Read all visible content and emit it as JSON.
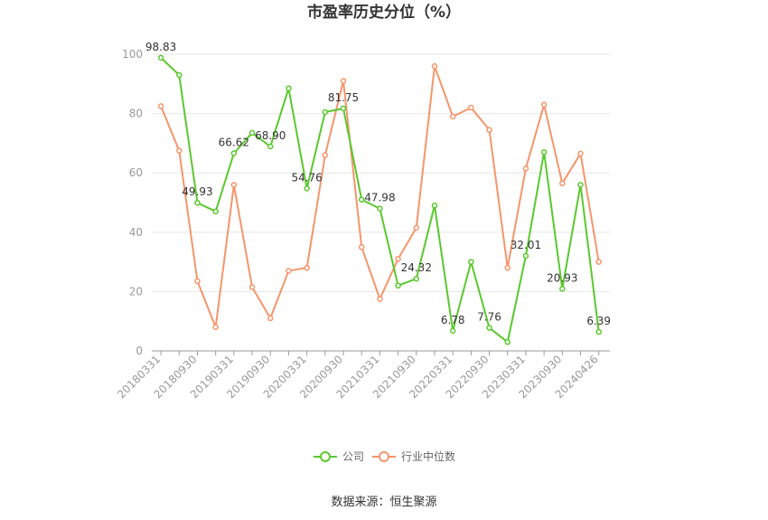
{
  "title": "市盈率历史分位（%）",
  "source": "数据来源：恒生聚源",
  "colors": {
    "company": "#5ac82d",
    "industry": "#f5956b",
    "grid": "#e6e6e6",
    "axis": "#999999"
  },
  "chart_data": {
    "type": "line",
    "title": "市盈率历史分位（%）",
    "xlabel": "",
    "ylabel": "",
    "ylim": [
      0,
      100
    ],
    "yticks": [
      0,
      20,
      40,
      60,
      80,
      100
    ],
    "grid": true,
    "legend_position": "bottom",
    "x": [
      "20180331",
      "20180630",
      "20180930",
      "20181231",
      "20190331",
      "20190630",
      "20190930",
      "20191231",
      "20200331",
      "20200630",
      "20200930",
      "20201231",
      "20210331",
      "20210630",
      "20210930",
      "20211231",
      "20220331",
      "20220630",
      "20220930",
      "20221231",
      "20230331",
      "20230630",
      "20230930",
      "20231231",
      "20240426"
    ],
    "x_tick_labels": [
      "20180331",
      "20180930",
      "20190331",
      "20190930",
      "20200331",
      "20200930",
      "20210331",
      "20210930",
      "20220331",
      "20220930",
      "20230331",
      "20230930",
      "20240426"
    ],
    "series": [
      {
        "name": "公司",
        "values": [
          98.83,
          93.0,
          49.93,
          47.0,
          66.62,
          73.5,
          68.9,
          88.5,
          54.76,
          80.5,
          81.75,
          51.0,
          47.98,
          22.0,
          24.32,
          49.0,
          6.78,
          30.0,
          7.76,
          3.0,
          32.01,
          67.0,
          20.93,
          56.0,
          6.39
        ],
        "labels": [
          "98.83",
          null,
          "49.93",
          null,
          "66.62",
          null,
          "68.90",
          null,
          "54.76",
          null,
          "81.75",
          null,
          "47.98",
          null,
          "24.32",
          null,
          "6.78",
          null,
          "7.76",
          null,
          "32.01",
          null,
          "20.93",
          null,
          "6.39"
        ]
      },
      {
        "name": "行业中位数",
        "values": [
          82.5,
          67.5,
          23.5,
          8.0,
          56.0,
          21.5,
          11.0,
          27.0,
          28.0,
          66.0,
          91.0,
          35.0,
          17.5,
          31.0,
          41.5,
          96.0,
          79.0,
          82.0,
          74.5,
          28.0,
          61.5,
          83.0,
          56.5,
          66.5,
          30.0
        ]
      }
    ]
  }
}
